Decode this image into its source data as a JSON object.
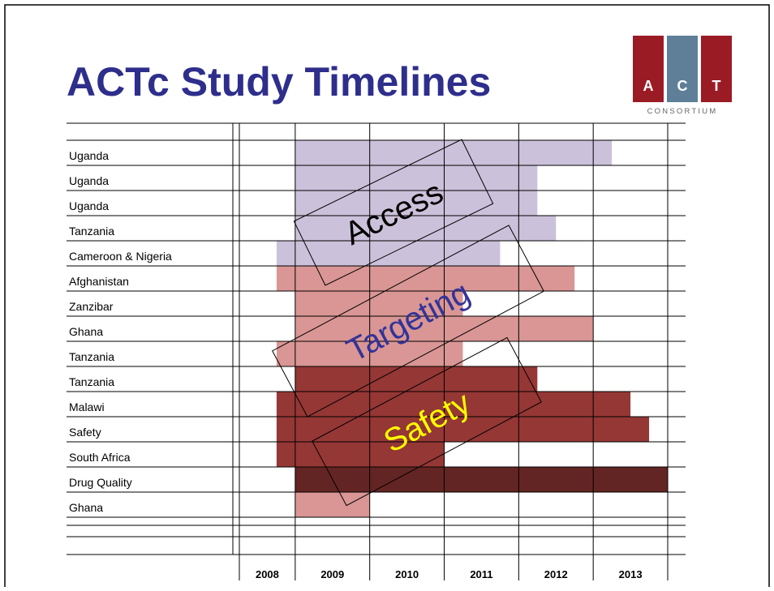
{
  "chart_data": {
    "type": "gantt",
    "title": "ACTc Study Timelines",
    "categories": [
      "Uganda",
      "Uganda",
      "Uganda",
      "Tanzania",
      "Cameroon & Nigeria",
      "Afghanistan",
      "Zanzibar",
      "Ghana",
      "Tanzania",
      "Tanzania",
      "Malawi",
      "Safety",
      "South Africa",
      "Drug Quality",
      "Ghana"
    ],
    "start": [
      2009,
      2009,
      2009,
      2009,
      2008.75,
      2008.75,
      2009,
      2009,
      2008.75,
      2009,
      2008.75,
      2008.75,
      2008.75,
      2009,
      2009
    ],
    "end": [
      2013.25,
      2012.25,
      2012.25,
      2012.5,
      2011.75,
      2012.75,
      2011.25,
      2013,
      2011.25,
      2012.25,
      2013.5,
      2013.75,
      2011,
      2014,
      2010
    ],
    "colors": [
      "#ccc1da",
      "#ccc1da",
      "#ccc1da",
      "#ccc1da",
      "#ccc1da",
      "#d99694",
      "#d99694",
      "#d99694",
      "#d99694",
      "#953735",
      "#953735",
      "#953735",
      "#953735",
      "#632523",
      "#d99694"
    ],
    "xlim": [
      2008.25,
      2014
    ],
    "xticks": [
      2009,
      2010,
      2011,
      2012,
      2013,
      2014
    ],
    "year_labels": [
      "2008",
      "2009",
      "2010",
      "2011",
      "2012",
      "2013"
    ],
    "annotations": [
      {
        "text": "Access",
        "color": "#000000"
      },
      {
        "text": "Targeting",
        "color": "#333399"
      },
      {
        "text": "Safety",
        "color": "#ffff00"
      }
    ]
  },
  "logo": {
    "letters": [
      "A",
      "C",
      "T"
    ],
    "text": "CONSORTIUM"
  }
}
